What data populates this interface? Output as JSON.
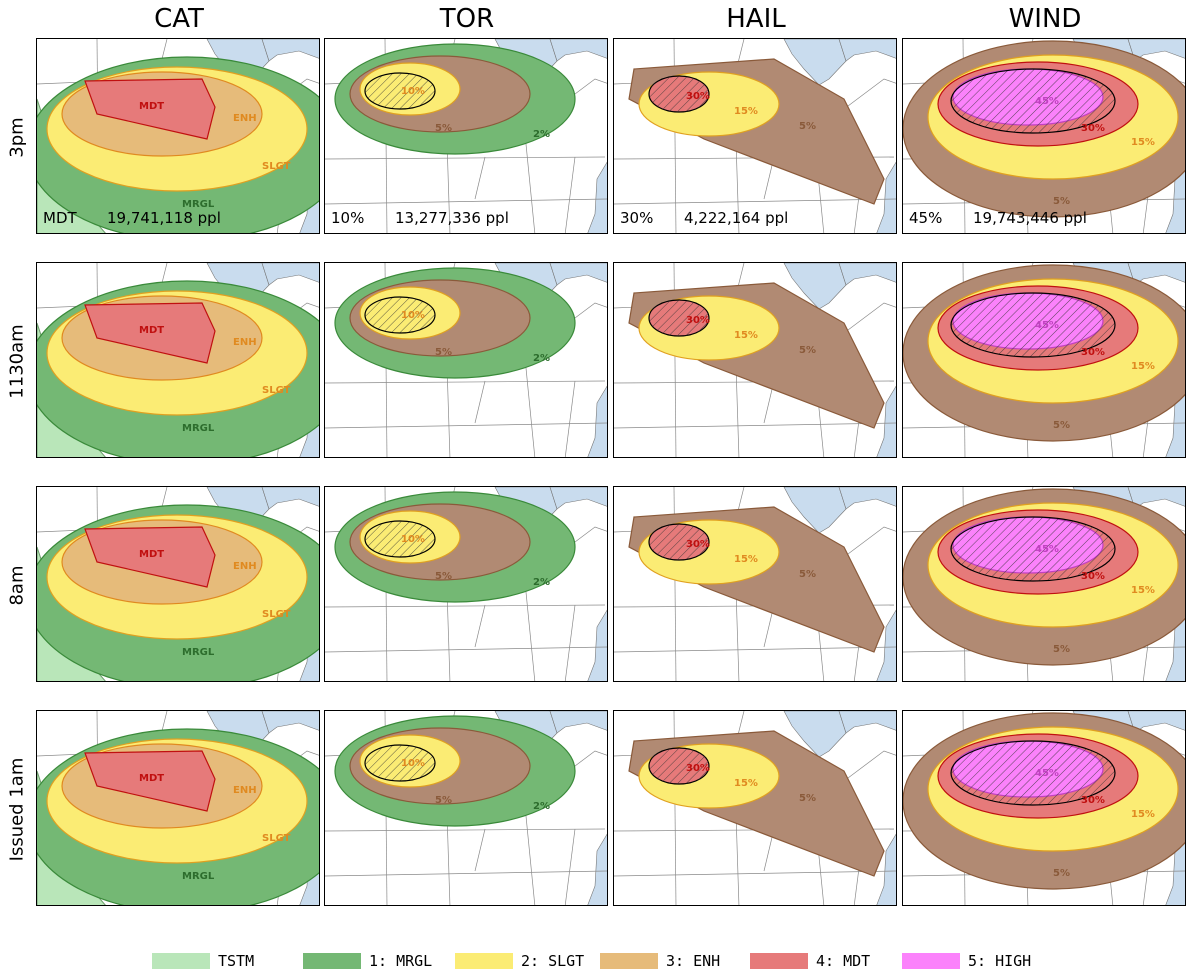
{
  "columns": [
    {
      "key": "cat",
      "title": "CAT"
    },
    {
      "key": "tor",
      "title": "TOR"
    },
    {
      "key": "hail",
      "title": "HAIL"
    },
    {
      "key": "wind",
      "title": "WIND"
    }
  ],
  "rows": [
    {
      "key": "r3pm",
      "title": "3pm"
    },
    {
      "key": "r1130",
      "title": "1130am"
    },
    {
      "key": "r8am",
      "title": "8am"
    },
    {
      "key": "r1am",
      "title": "Issued 1am"
    }
  ],
  "stats": {
    "cat": {
      "level": "MDT",
      "population": "19,741,118 ppl"
    },
    "tor": {
      "level": "10%",
      "population": "13,277,336 ppl"
    },
    "hail": {
      "level": "30%",
      "population": "4,222,164 ppl"
    },
    "wind": {
      "level": "45%",
      "population": "19,743,446 ppl"
    }
  },
  "labels": {
    "cat": {
      "mdt": "MDT",
      "enh": "ENH",
      "slgt": "SLGT",
      "mrgl": "MRGL"
    },
    "tor": {
      "p10": "10%",
      "p5": "5%",
      "p2": "2%"
    },
    "hail": {
      "p30": "30%",
      "p15": "15%",
      "p5": "5%"
    },
    "wind": {
      "p45": "45%",
      "p30": "30%",
      "p15": "15%",
      "p5": "5%"
    }
  },
  "legend": [
    {
      "label": "TSTM",
      "color": "#b9e6b9"
    },
    {
      "label": "1: MRGL",
      "color": "#74b874"
    },
    {
      "label": "2: SLGT",
      "color": "#fbec74"
    },
    {
      "label": "3: ENH",
      "color": "#e6bb7a"
    },
    {
      "label": "4: MDT",
      "color": "#e67a7a"
    },
    {
      "label": "5: HIGH",
      "color": "#fb82fb"
    }
  ],
  "colors": {
    "tstm": "#b9e6b9",
    "mrgl": "#74b874",
    "slgt": "#fbec74",
    "enh": "#e6bb7a",
    "mdt": "#e67a7a",
    "high": "#fb82fb",
    "brown": "#b18a73",
    "lake": "#c9dcee",
    "land_line": "#8a8a8a"
  }
}
